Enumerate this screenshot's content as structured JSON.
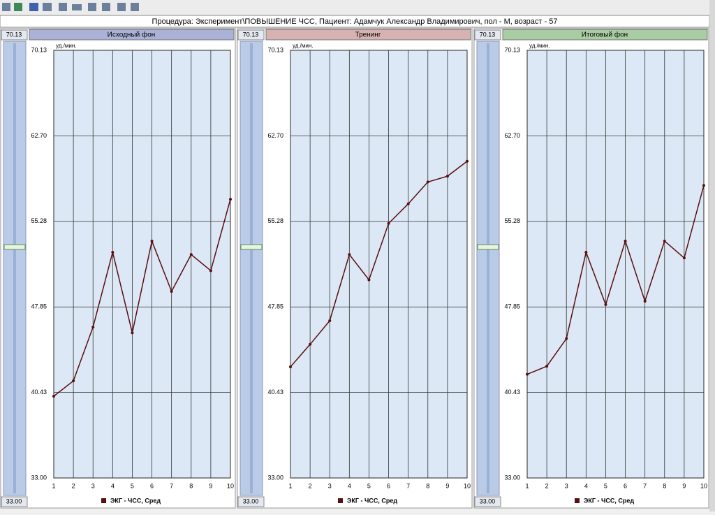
{
  "header": {
    "title": "Процедура: Эксперимент\\ПОВЫШЕНИЕ ЧСС, Пациент: Адамчук Александр Владимирович, пол - М, возраст - 57"
  },
  "chart_data": [
    {
      "type": "line",
      "title": "Исходный фон",
      "title_color": "#aab2d8",
      "y_label": "уд./мин.",
      "x": [
        1,
        2,
        3,
        4,
        5,
        6,
        7,
        8,
        9,
        10
      ],
      "xlim": [
        1,
        10
      ],
      "xticks": [
        1,
        2,
        3,
        4,
        5,
        6,
        7,
        8,
        9,
        10
      ],
      "ylim": [
        33,
        70.13
      ],
      "yticks": [
        {
          "value": 33,
          "label": "33.00"
        },
        40.43,
        47.85,
        55.28,
        {
          "value": 62.7,
          "label": "62.70"
        },
        70.13
      ],
      "grid": true,
      "series": [
        {
          "name": "ЭКГ - ЧСС, Сред",
          "color": "#5a0e0e",
          "values": [
            40.1,
            41.43,
            46.1,
            52.6,
            45.6,
            53.57,
            49.2,
            52.4,
            51.0,
            57.2
          ]
        }
      ]
    },
    {
      "type": "line",
      "title": "Тренинг",
      "title_color": "#d6b3b0",
      "y_label": "уд./мин.",
      "x": [
        1,
        2,
        3,
        4,
        5,
        6,
        7,
        8,
        9,
        10
      ],
      "xlim": [
        1,
        10
      ],
      "xticks": [
        1,
        2,
        3,
        4,
        5,
        6,
        7,
        8,
        9,
        10
      ],
      "ylim": [
        33,
        70.13
      ],
      "yticks": [
        {
          "value": 33,
          "label": "33.00"
        },
        40.43,
        47.85,
        55.28,
        {
          "value": 62.7,
          "label": "62.70"
        },
        70.13
      ],
      "grid": true,
      "series": [
        {
          "name": "ЭКГ - ЧСС, Сред",
          "color": "#5a0e0e",
          "values": [
            42.65,
            44.6,
            46.65,
            52.4,
            50.2,
            55.1,
            56.8,
            58.7,
            59.2,
            60.5
          ]
        }
      ]
    },
    {
      "type": "line",
      "title": "Итоговый фон",
      "title_color": "#a9cda2",
      "y_label": "уд./мин.",
      "x": [
        1,
        2,
        3,
        4,
        5,
        6,
        7,
        8,
        9,
        10
      ],
      "xlim": [
        1,
        10
      ],
      "xticks": [
        1,
        2,
        3,
        4,
        5,
        6,
        7,
        8,
        9,
        10
      ],
      "ylim": [
        33,
        70.13
      ],
      "yticks": [
        {
          "value": 33,
          "label": "33.00"
        },
        40.43,
        47.85,
        55.28,
        {
          "value": 62.7,
          "label": "62.70"
        },
        70.13
      ],
      "grid": true,
      "series": [
        {
          "name": "ЭКГ - ЧСС, Сред",
          "color": "#5a0e0e",
          "values": [
            42.0,
            42.7,
            45.1,
            52.6,
            48.05,
            53.57,
            48.35,
            53.57,
            52.1,
            58.4
          ]
        }
      ]
    }
  ]
}
